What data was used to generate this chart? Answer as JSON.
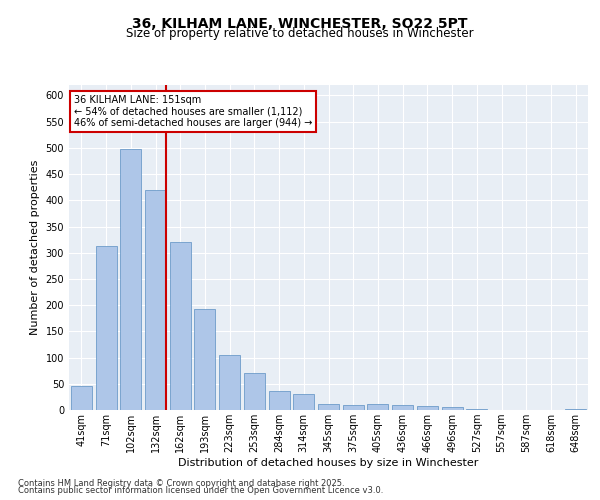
{
  "title1": "36, KILHAM LANE, WINCHESTER, SO22 5PT",
  "title2": "Size of property relative to detached houses in Winchester",
  "xlabel": "Distribution of detached houses by size in Winchester",
  "ylabel": "Number of detached properties",
  "categories": [
    "41sqm",
    "71sqm",
    "102sqm",
    "132sqm",
    "162sqm",
    "193sqm",
    "223sqm",
    "253sqm",
    "284sqm",
    "314sqm",
    "345sqm",
    "375sqm",
    "405sqm",
    "436sqm",
    "466sqm",
    "496sqm",
    "527sqm",
    "557sqm",
    "587sqm",
    "618sqm",
    "648sqm"
  ],
  "values": [
    45,
    313,
    497,
    420,
    320,
    193,
    105,
    70,
    37,
    30,
    12,
    10,
    12,
    10,
    8,
    5,
    2,
    0,
    0,
    0,
    2
  ],
  "bar_color": "#aec6e8",
  "bar_edge_color": "#5a8fc2",
  "vline_color": "#cc0000",
  "annotation_text": "36 KILHAM LANE: 151sqm\n← 54% of detached houses are smaller (1,112)\n46% of semi-detached houses are larger (944) →",
  "annotation_box_color": "#ffffff",
  "annotation_box_edge_color": "#cc0000",
  "ylim": [
    0,
    620
  ],
  "yticks": [
    0,
    50,
    100,
    150,
    200,
    250,
    300,
    350,
    400,
    450,
    500,
    550,
    600
  ],
  "footer1": "Contains HM Land Registry data © Crown copyright and database right 2025.",
  "footer2": "Contains public sector information licensed under the Open Government Licence v3.0.",
  "background_color": "#e8eef5",
  "title1_fontsize": 10,
  "title2_fontsize": 8.5,
  "xlabel_fontsize": 8,
  "ylabel_fontsize": 8,
  "tick_fontsize": 7,
  "annotation_fontsize": 7,
  "footer_fontsize": 6
}
